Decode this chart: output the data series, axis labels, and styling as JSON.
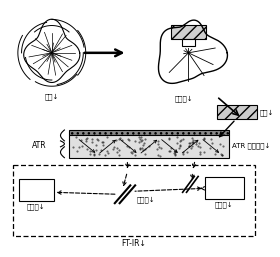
{
  "label_shikyo": "試料↓",
  "label_saigaiba": "最外葉↓",
  "label_setsuhen": "切片↓",
  "label_atr": "ATR",
  "label_atr_prism": "ATR プリズム↓",
  "label_mirror": "ミラー↓",
  "label_detector": "検出器↓",
  "label_interferometer": "干渉計↓",
  "label_ftir": "FT-IR↓",
  "label_atr_brace": "ATR {"
}
